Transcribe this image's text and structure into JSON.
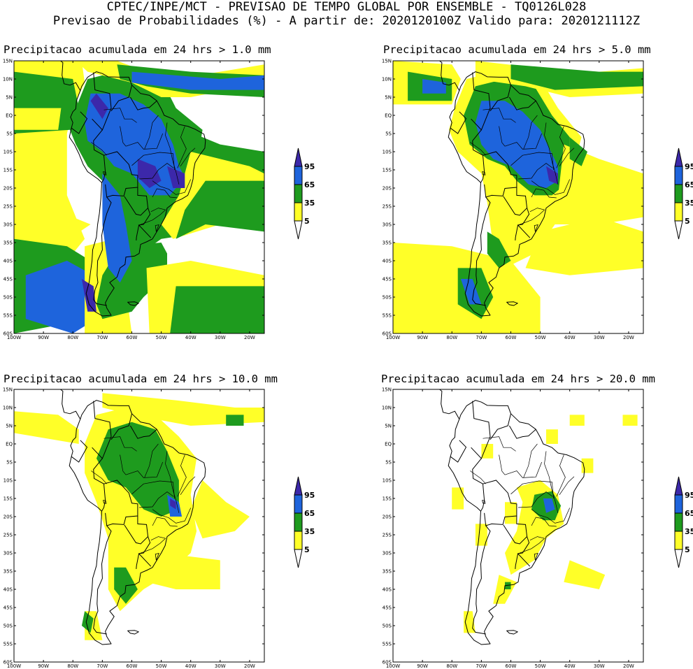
{
  "header": {
    "line1": "CPTEC/INPE/MCT - PREVISAO DE TEMPO GLOBAL POR ENSEMBLE - TQ0126L028",
    "line2": "Previsao de Probabilidades (%) -  A partir de: 2020120100Z  Valido para: 2020121112Z"
  },
  "panels": [
    {
      "title": "Precipitacao acumulada em 24 hrs > 1.0 mm",
      "threshold_mm": 1.0
    },
    {
      "title": "Precipitacao acumulada em 24 hrs > 5.0 mm",
      "threshold_mm": 5.0
    },
    {
      "title": "Precipitacao acumulada em 24 hrs > 10.0 mm",
      "threshold_mm": 10.0
    },
    {
      "title": "Precipitacao acumulada em 24 hrs > 20.0 mm",
      "threshold_mm": 20.0
    }
  ],
  "axes": {
    "lat_labels": [
      "15N",
      "10N",
      "5N",
      "EQ",
      "5S",
      "10S",
      "15S",
      "20S",
      "25S",
      "30S",
      "35S",
      "40S",
      "45S",
      "50S",
      "55S",
      "60S"
    ],
    "lon_labels": [
      "100W",
      "90W",
      "80W",
      "70W",
      "60W",
      "50W",
      "40W",
      "30W",
      "20W"
    ]
  },
  "legend": {
    "labels": [
      "95",
      "65",
      "35",
      "5"
    ],
    "colors": {
      "yellow": "#ffff28",
      "green": "#1e9b1e",
      "blue": "#1e64dc",
      "purple": "#3c28aa"
    }
  }
}
